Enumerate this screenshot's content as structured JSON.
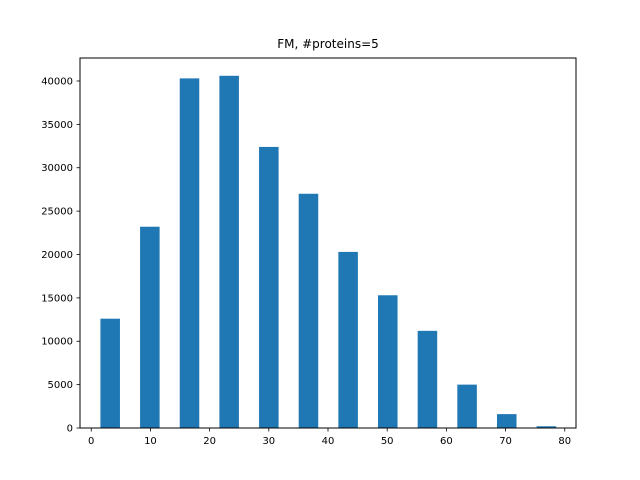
{
  "chart_data": {
    "type": "bar",
    "title": "FM, #proteins=5",
    "xlabel": "",
    "ylabel": "",
    "xlim": [
      -1.9,
      81.9
    ],
    "ylim": [
      0,
      42650
    ],
    "bar_width": 3.3,
    "bar_color": "#1f77b4",
    "grid": false,
    "x": [
      3.2,
      9.9,
      16.6,
      23.3,
      30.0,
      36.7,
      43.4,
      50.1,
      56.8,
      63.5,
      70.2,
      76.9
    ],
    "values": [
      12600,
      23200,
      40300,
      40600,
      32400,
      27000,
      20300,
      15300,
      11200,
      5000,
      1600,
      200
    ],
    "xticks": [
      0,
      10,
      20,
      30,
      40,
      50,
      60,
      70,
      80
    ],
    "xtick_labels": [
      "0",
      "10",
      "20",
      "30",
      "40",
      "50",
      "60",
      "70",
      "80"
    ],
    "yticks": [
      0,
      5000,
      10000,
      15000,
      20000,
      25000,
      30000,
      35000,
      40000
    ],
    "ytick_labels": [
      "0",
      "5000",
      "10000",
      "15000",
      "20000",
      "25000",
      "30000",
      "35000",
      "40000"
    ]
  }
}
